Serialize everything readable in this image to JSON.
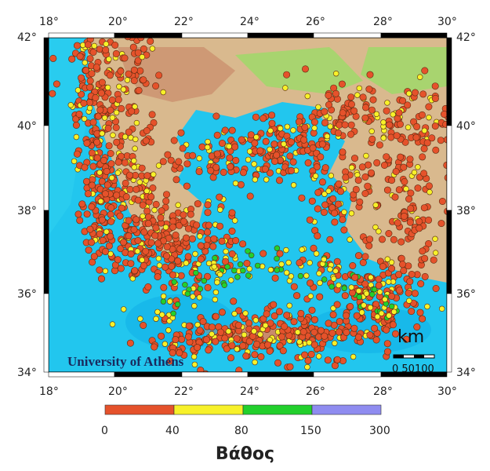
{
  "map": {
    "lon_ticks": [
      "18°",
      "20°",
      "22°",
      "24°",
      "26°",
      "28°",
      "30°"
    ],
    "lat_ticks": [
      "42°",
      "40°",
      "38°",
      "36°",
      "34°"
    ],
    "credit": "University of Athens",
    "scale_bar": {
      "unit_label": "km",
      "tick_labels": "0  50100"
    },
    "legend": {
      "title": "Βάθος",
      "breaks": [
        "0",
        "40",
        "80",
        "150",
        "300"
      ],
      "colors": [
        "#e5522b",
        "#f7f12a",
        "#22d02c",
        "#8f8cf0"
      ]
    },
    "palette": {
      "sea": "#22c6ee",
      "deep_sea": "#12b0e8",
      "land_low": "#9fd86a",
      "land_mid": "#d9b98e",
      "land_high": "#c98b6b"
    }
  }
}
